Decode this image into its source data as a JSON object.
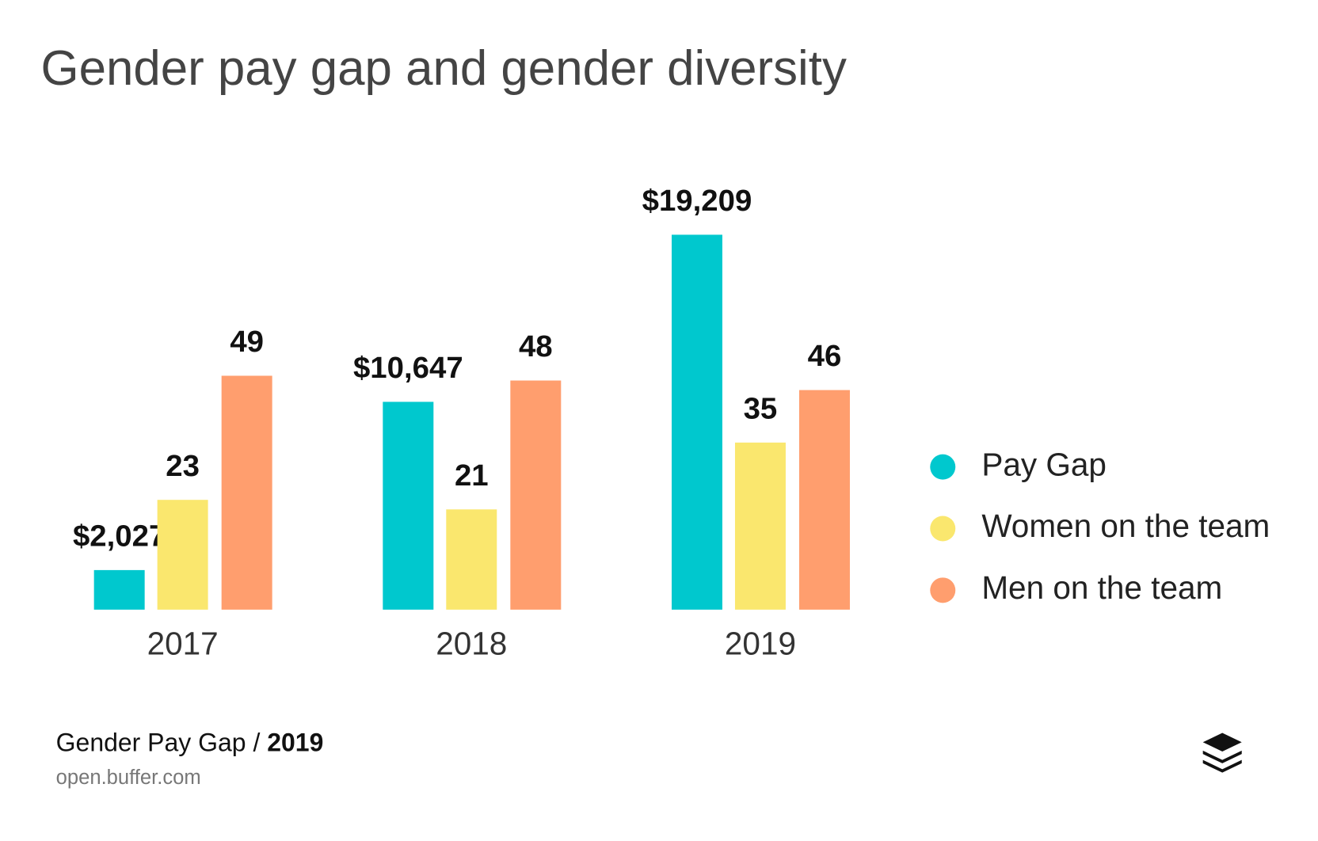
{
  "chart_data": {
    "type": "bar",
    "title": "Gender pay gap and gender diversity",
    "categories": [
      "2017",
      "2018",
      "2019"
    ],
    "series": [
      {
        "name": "Pay Gap",
        "color": "#00c8ce",
        "axis": "y2",
        "values": [
          2027,
          10647,
          19209
        ],
        "value_labels": [
          "$2,027",
          "$10,647",
          "$19,209"
        ]
      },
      {
        "name": "Women on the team",
        "color": "#fae76e",
        "values": [
          23,
          21,
          35
        ]
      },
      {
        "name": "Men on the team",
        "color": "#ff9e6e",
        "values": [
          49,
          48,
          46
        ]
      }
    ],
    "legend": "right"
  },
  "footer": {
    "label": "Gender Pay Gap /",
    "year": "2019",
    "site": "open.buffer.com"
  }
}
